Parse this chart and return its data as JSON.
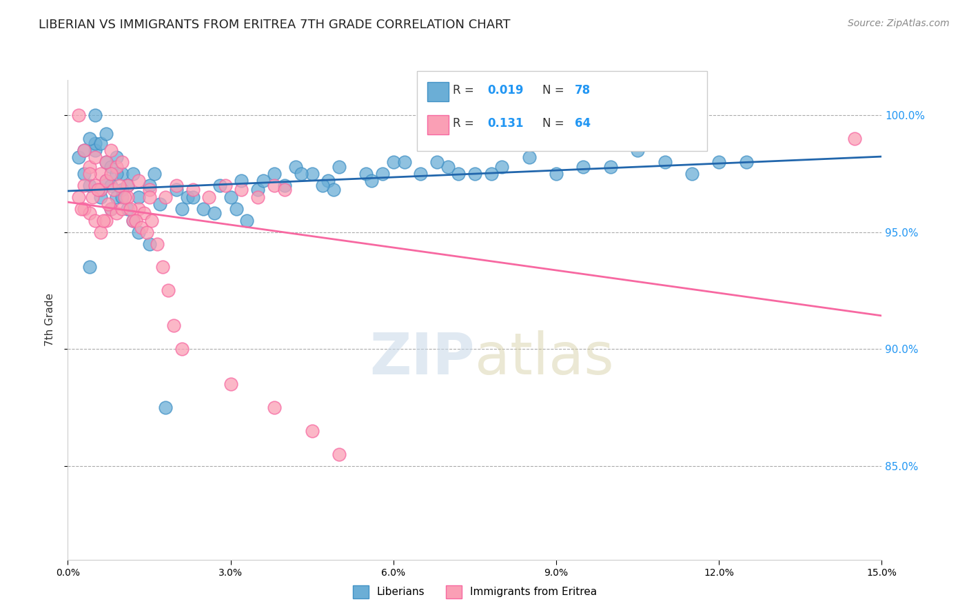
{
  "title": "LIBERIAN VS IMMIGRANTS FROM ERITREA 7TH GRADE CORRELATION CHART",
  "source_text": "Source: ZipAtlas.com",
  "ylabel": "7th Grade",
  "xlim": [
    0.0,
    15.0
  ],
  "ylim": [
    81.0,
    101.5
  ],
  "yticks": [
    85.0,
    90.0,
    95.0,
    100.0
  ],
  "ytick_labels": [
    "85.0%",
    "90.0%",
    "95.0%",
    "100.0%"
  ],
  "legend_blue_R": "0.019",
  "legend_blue_N": "78",
  "legend_pink_R": "0.131",
  "legend_pink_N": "64",
  "blue_color": "#6baed6",
  "blue_edge": "#4292c6",
  "pink_color": "#fa9fb5",
  "pink_edge": "#f768a1",
  "blue_line_color": "#2166ac",
  "pink_line_color": "#f768a1",
  "blue_x": [
    0.3,
    0.5,
    0.4,
    0.7,
    0.6,
    0.8,
    0.9,
    1.0,
    0.5,
    0.6,
    0.7,
    0.9,
    1.1,
    1.2,
    0.8,
    1.0,
    1.3,
    1.5,
    1.7,
    1.6,
    2.0,
    2.2,
    2.5,
    2.8,
    3.0,
    3.2,
    3.5,
    3.8,
    4.0,
    4.2,
    4.5,
    4.8,
    5.0,
    5.5,
    6.0,
    6.5,
    7.0,
    7.5,
    8.0,
    9.0,
    10.0,
    11.0,
    12.0,
    0.2,
    0.3,
    0.4,
    0.5,
    0.6,
    0.7,
    0.8,
    0.9,
    1.0,
    1.1,
    1.2,
    1.3,
    1.5,
    2.3,
    2.7,
    3.1,
    3.6,
    4.3,
    4.9,
    5.6,
    6.2,
    7.2,
    8.5,
    9.5,
    10.5,
    11.5,
    12.5,
    2.1,
    1.8,
    0.4,
    3.3,
    4.7,
    5.8,
    6.8,
    7.8
  ],
  "blue_y": [
    97.5,
    98.5,
    97.0,
    98.0,
    96.5,
    97.8,
    98.2,
    97.5,
    98.8,
    96.8,
    97.2,
    96.5,
    97.0,
    97.5,
    96.0,
    96.8,
    96.5,
    97.0,
    96.2,
    97.5,
    96.8,
    96.5,
    96.0,
    97.0,
    96.5,
    97.2,
    96.8,
    97.5,
    97.0,
    97.8,
    97.5,
    97.2,
    97.8,
    97.5,
    98.0,
    97.5,
    97.8,
    97.5,
    97.8,
    97.5,
    97.8,
    98.0,
    98.0,
    98.2,
    98.5,
    99.0,
    100.0,
    98.8,
    99.2,
    97.0,
    97.5,
    96.5,
    96.0,
    95.5,
    95.0,
    94.5,
    96.5,
    95.8,
    96.0,
    97.2,
    97.5,
    96.8,
    97.2,
    98.0,
    97.5,
    98.2,
    97.8,
    98.5,
    97.5,
    98.0,
    96.0,
    87.5,
    93.5,
    95.5,
    97.0,
    97.5,
    98.0,
    97.5
  ],
  "pink_x": [
    0.2,
    0.3,
    0.4,
    0.5,
    0.6,
    0.7,
    0.8,
    0.9,
    1.0,
    0.3,
    0.4,
    0.5,
    0.6,
    0.7,
    0.8,
    1.1,
    1.3,
    1.5,
    1.8,
    2.0,
    2.3,
    2.6,
    2.9,
    3.2,
    3.5,
    3.8,
    4.0,
    0.2,
    0.3,
    0.4,
    0.5,
    0.6,
    0.7,
    0.8,
    0.9,
    1.0,
    1.1,
    1.2,
    1.3,
    1.4,
    1.5,
    0.25,
    0.45,
    0.55,
    0.65,
    0.75,
    0.85,
    0.95,
    1.05,
    1.15,
    1.25,
    1.35,
    1.45,
    1.55,
    1.65,
    1.75,
    1.85,
    1.95,
    2.1,
    3.0,
    3.8,
    4.5,
    5.0,
    14.5
  ],
  "pink_y": [
    100.0,
    98.5,
    97.8,
    98.2,
    97.5,
    98.0,
    98.5,
    97.8,
    98.0,
    97.0,
    97.5,
    97.0,
    96.8,
    97.2,
    97.5,
    97.0,
    97.2,
    96.8,
    96.5,
    97.0,
    96.8,
    96.5,
    97.0,
    96.8,
    96.5,
    97.0,
    96.8,
    96.5,
    96.0,
    95.8,
    95.5,
    95.0,
    95.5,
    96.0,
    95.8,
    96.0,
    96.5,
    95.5,
    96.0,
    95.8,
    96.5,
    96.0,
    96.5,
    96.8,
    95.5,
    96.2,
    96.8,
    97.0,
    96.5,
    96.0,
    95.5,
    95.2,
    95.0,
    95.5,
    94.5,
    93.5,
    92.5,
    91.0,
    90.0,
    88.5,
    87.5,
    86.5,
    85.5,
    99.0
  ]
}
